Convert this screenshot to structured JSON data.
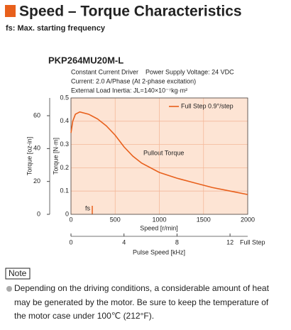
{
  "header": {
    "title": "Speed – Torque Characteristics",
    "subtitle": "fs: Max. starting frequency"
  },
  "chart_data": {
    "type": "line",
    "title": "PKP264MU20M-L",
    "conditions": [
      "Constant Current Driver    Power Supply Voltage: 24 VDC",
      "Current: 2.0 A/Phase (At 2-phase excitation)",
      "External Load Inertia: JL=140×10⁻⁷kg·m²"
    ],
    "x": [
      0,
      20,
      50,
      100,
      200,
      300,
      400,
      500,
      600,
      700,
      800,
      1000,
      1200,
      1400,
      1600,
      1800,
      2000
    ],
    "series": [
      {
        "name": "Full Step 0.9°/step",
        "color": "#e8601c",
        "values": [
          0.35,
          0.4,
          0.43,
          0.44,
          0.43,
          0.41,
          0.38,
          0.34,
          0.29,
          0.25,
          0.22,
          0.18,
          0.155,
          0.135,
          0.115,
          0.1,
          0.085
        ]
      }
    ],
    "xlim": [
      0,
      2000
    ],
    "xticks": [
      0,
      500,
      1000,
      1500,
      2000
    ],
    "xlabel": "Speed [r/min]",
    "ylim": [
      0,
      0.5
    ],
    "yticks": [
      0,
      0.1,
      0.2,
      0.3,
      0.4,
      0.5
    ],
    "ylabel": "Torque [N·m]",
    "y2lim": [
      0,
      70.81
    ],
    "y2ticks": [
      0,
      20,
      40,
      60
    ],
    "y2label": "Torque [oz-in]",
    "x2lim": [
      0,
      13.333
    ],
    "x2ticks": [
      0,
      4,
      8,
      12
    ],
    "x2label": "Pulse Speed [kHz]",
    "x2note": "Full Step",
    "annotations": [
      "Pullout Torque",
      "fs"
    ],
    "grid": true
  },
  "note": {
    "label": "Note",
    "lines": [
      "Depending on the driving conditions, a considerable amount of heat",
      "may be generated by the motor. Be sure to keep the temperature of",
      "the motor case under 100℃ (212°F)."
    ]
  }
}
